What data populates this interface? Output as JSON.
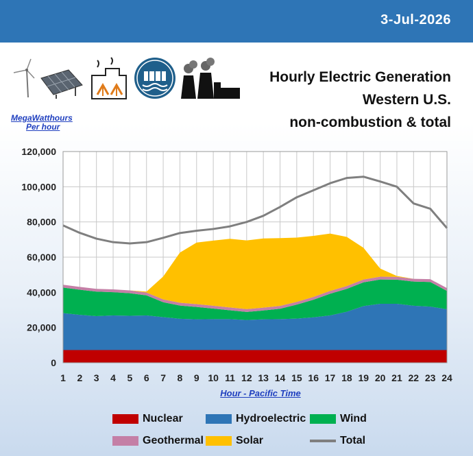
{
  "header": {
    "date": "3-Jul-2026"
  },
  "title_lines": [
    "Hourly Electric Generation",
    "Western U.S.",
    "non-combustion & total"
  ],
  "units_lines": [
    "MegaWatthours",
    "Per hour"
  ],
  "icons": [
    "wind-turbine-icon",
    "solar-panel-icon",
    "geothermal-plant-icon",
    "hydro-dam-icon",
    "nuclear-plant-icon"
  ],
  "colors": {
    "nuclear": "#c00000",
    "hydro": "#2e75b6",
    "wind": "#00b050",
    "geothermal": "#c47fa6",
    "solar": "#ffc000",
    "total": "#7f7f7f",
    "header": "#2e75b6"
  },
  "chart_data": {
    "type": "area",
    "stacked": true,
    "xlabel": "Hour - Pacific Time",
    "x": [
      1,
      2,
      3,
      4,
      5,
      6,
      7,
      8,
      9,
      10,
      11,
      12,
      13,
      14,
      15,
      16,
      17,
      18,
      19,
      20,
      21,
      22,
      23,
      24
    ],
    "ylim": [
      0,
      120000
    ],
    "yticks": [
      "0",
      "20,000",
      "40,000",
      "60,000",
      "80,000",
      "100,000",
      "120,000"
    ],
    "grid": true,
    "legend_position": "bottom",
    "series": [
      {
        "name": "Nuclear",
        "values": [
          7200,
          7200,
          7200,
          7200,
          7200,
          7200,
          7200,
          7200,
          7200,
          7200,
          7200,
          7200,
          7200,
          7200,
          7200,
          7200,
          7200,
          7200,
          7200,
          7200,
          7200,
          7200,
          7200,
          7200
        ]
      },
      {
        "name": "Hydroelectric",
        "values": [
          21000,
          20000,
          19300,
          19700,
          19500,
          19700,
          18700,
          17800,
          17500,
          17600,
          17600,
          17100,
          17500,
          17600,
          17900,
          18600,
          19700,
          21800,
          25000,
          26300,
          26300,
          25200,
          24700,
          23200
        ]
      },
      {
        "name": "Wind",
        "values": [
          14500,
          14300,
          13900,
          13200,
          12800,
          11400,
          8500,
          7500,
          7000,
          6000,
          5000,
          4600,
          5000,
          5900,
          7900,
          10000,
          12300,
          13000,
          13500,
          13800,
          13700,
          13700,
          14000,
          10400
        ]
      },
      {
        "name": "Geothermal",
        "values": [
          1600,
          1600,
          1600,
          1600,
          1600,
          1600,
          1600,
          1600,
          1600,
          1600,
          1600,
          1600,
          1600,
          1600,
          1600,
          1600,
          1600,
          1600,
          1600,
          1600,
          1600,
          1600,
          1600,
          1600
        ]
      },
      {
        "name": "Solar",
        "values": [
          0,
          0,
          0,
          0,
          0,
          500,
          13000,
          28500,
          35000,
          37000,
          39000,
          39000,
          39300,
          38500,
          36500,
          34700,
          32600,
          27900,
          18000,
          4600,
          500,
          0,
          0,
          0
        ]
      },
      {
        "name": "Total",
        "type": "line",
        "values": [
          78000,
          73800,
          70500,
          68500,
          67800,
          68500,
          71000,
          73700,
          75000,
          76000,
          77500,
          80000,
          83500,
          88500,
          94000,
          98000,
          102000,
          105000,
          105700,
          103000,
          100000,
          90500,
          87500,
          76500
        ]
      }
    ]
  }
}
